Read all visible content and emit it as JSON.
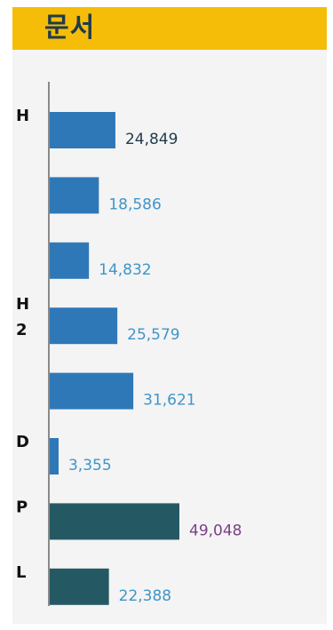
{
  "header": {
    "title": "문서"
  },
  "colors": {
    "header_bg": "#f5bd08",
    "panel_bg": "#f4f4f4",
    "bar_blue": "#2f78b7",
    "bar_teal": "#245964",
    "value_blue": "#3f95c9",
    "value_navy": "#1f3b4d",
    "value_purple": "#7a3f86"
  },
  "chart_data": {
    "type": "bar",
    "orientation": "horizontal",
    "categories": [
      "H",
      "",
      "",
      "H\n2",
      "",
      "D",
      "P",
      "L"
    ],
    "values": [
      24849,
      18586,
      14832,
      25579,
      31621,
      3355,
      49048,
      22388
    ],
    "value_labels": [
      "24,849",
      "18,586",
      "14,832",
      "25,579",
      "31,621",
      "3,355",
      "49,048",
      "22,388"
    ],
    "bar_colors": [
      "#2f78b7",
      "#2f78b7",
      "#2f78b7",
      "#2f78b7",
      "#2f78b7",
      "#2f78b7",
      "#245964",
      "#245964"
    ],
    "label_colors": [
      "#1f3b4d",
      "#3f95c9",
      "#3f95c9",
      "#3f95c9",
      "#3f95c9",
      "#3f95c9",
      "#7a3f86",
      "#3f95c9"
    ],
    "xlim": [
      0,
      49048
    ],
    "grid": false,
    "legend": false
  }
}
